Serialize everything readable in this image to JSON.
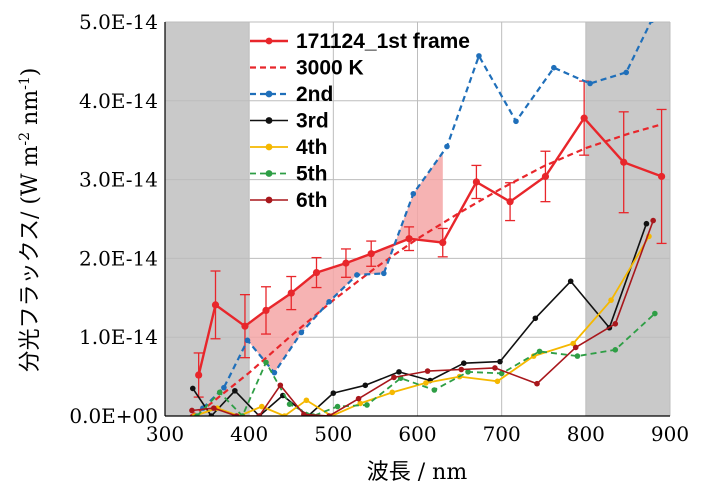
{
  "chart_data": {
    "type": "line",
    "title": "",
    "xlabel": "波長 / nm",
    "ylabel": "分光フラックス/ (W m",
    "ylabel_sup1": "-2",
    "ylabel_mid": " nm",
    "ylabel_sup2": "-1",
    "ylabel_end": ")",
    "xlim": [
      300,
      900
    ],
    "ylim": [
      0,
      5e-14
    ],
    "xticks": [
      300,
      400,
      500,
      600,
      700,
      800,
      900
    ],
    "xtick_labels": [
      "300",
      "400",
      "500",
      "600",
      "700",
      "800",
      "900"
    ],
    "yticks": [
      0,
      1e-14,
      2e-14,
      3e-14,
      4e-14,
      5e-14
    ],
    "ytick_labels": [
      "0.0E+00",
      "1.0E-14",
      "2.0E-14",
      "3.0E-14",
      "4.0E-14",
      "5.0E-14"
    ],
    "grid": true,
    "legend_position": "top-center",
    "shaded_ranges": [
      [
        300,
        400
      ],
      [
        800,
        900
      ]
    ],
    "shaded_color": "#c9c9c9",
    "fill_between": {
      "upper": "171124_1st frame",
      "lower": "2nd",
      "x_range": [
        400,
        630
      ],
      "color": "#f4a6a6"
    },
    "series": [
      {
        "name": "171124_1st frame",
        "color": "#e8262b",
        "style": "solid",
        "marker": true,
        "width": 2.4,
        "x": [
          340,
          360,
          395,
          420,
          450,
          480,
          515,
          545,
          590,
          630,
          670,
          710,
          752,
          798,
          845,
          890
        ],
        "y": [
          5.2e-15,
          1.41e-14,
          1.14e-14,
          1.34e-14,
          1.56e-14,
          1.82e-14,
          1.94e-14,
          2.06e-14,
          2.25e-14,
          2.2e-14,
          2.97e-14,
          2.72e-14,
          3.04e-14,
          3.78e-14,
          3.22e-14,
          3.04e-14
        ],
        "err": [
          2.8e-15,
          4.3e-15,
          4e-15,
          3e-15,
          2.1e-15,
          1.9e-15,
          1.8e-15,
          1.6e-15,
          1.5e-15,
          1.8e-15,
          2.1e-15,
          2.4e-15,
          3.2e-15,
          4.7e-15,
          6.4e-15,
          8.5e-15
        ]
      },
      {
        "name": "3000 K",
        "color": "#e8262b",
        "style": "dashed",
        "marker": false,
        "width": 2.2,
        "x": [
          330,
          350,
          400,
          450,
          500,
          550,
          600,
          650,
          700,
          750,
          800,
          850,
          890
        ],
        "y": [
          0,
          1.2e-15,
          5.5e-15,
          1.02e-14,
          1.47e-14,
          1.88e-14,
          2.25e-14,
          2.58e-14,
          2.89e-14,
          3.17e-14,
          3.4e-14,
          3.58e-14,
          3.7e-14
        ]
      },
      {
        "name": "2nd",
        "color": "#1f6fba",
        "style": "dashed",
        "marker": true,
        "width": 2.2,
        "x": [
          345,
          370,
          398,
          430,
          462,
          495,
          528,
          560,
          595,
          635,
          673,
          717,
          762,
          805,
          848,
          878
        ],
        "y": [
          1e-15,
          3.6e-15,
          9.6e-15,
          5.5e-15,
          1.06e-14,
          1.45e-14,
          1.79e-14,
          1.81e-14,
          2.82e-14,
          3.42e-14,
          4.57e-14,
          3.74e-14,
          4.42e-14,
          4.22e-14,
          4.36e-14,
          5.02e-14
        ]
      },
      {
        "name": "3rd",
        "color": "#111111",
        "style": "solid",
        "marker": true,
        "width": 1.6,
        "x": [
          333,
          355,
          383,
          412,
          440,
          470,
          500,
          538,
          578,
          615,
          655,
          698,
          740,
          782,
          828,
          872
        ],
        "y": [
          3.5e-15,
          0,
          3.2e-15,
          0,
          2.6e-15,
          0,
          2.9e-15,
          3.9e-15,
          5.6e-15,
          4.5e-15,
          6.7e-15,
          6.9e-15,
          1.24e-14,
          1.71e-14,
          1.12e-14,
          2.44e-14
        ]
      },
      {
        "name": "4th",
        "color": "#f5b800",
        "style": "solid",
        "marker": true,
        "width": 1.8,
        "x": [
          335,
          362,
          388,
          415,
          442,
          468,
          498,
          532,
          570,
          610,
          650,
          695,
          738,
          785,
          830,
          875
        ],
        "y": [
          0,
          1e-15,
          0,
          1.2e-15,
          0,
          2e-15,
          0,
          1.6e-15,
          3e-15,
          4.2e-15,
          5e-15,
          4.4e-15,
          7.6e-15,
          9.2e-15,
          1.47e-14,
          2.28e-14
        ]
      },
      {
        "name": "5th",
        "color": "#2e9e45",
        "style": "dashed",
        "marker": true,
        "width": 1.8,
        "x": [
          338,
          365,
          392,
          420,
          448,
          476,
          505,
          540,
          580,
          620,
          660,
          700,
          745,
          790,
          835,
          882
        ],
        "y": [
          0,
          3e-15,
          0,
          6.8e-15,
          1.5e-15,
          0,
          1.2e-15,
          1.4e-15,
          4.8e-15,
          3.3e-15,
          5.6e-15,
          5.4e-15,
          8.2e-15,
          7.6e-15,
          8.4e-15,
          1.3e-14
        ]
      },
      {
        "name": "6th",
        "color": "#a8171c",
        "style": "solid",
        "marker": true,
        "width": 1.6,
        "x": [
          332,
          358,
          385,
          412,
          437,
          465,
          495,
          530,
          572,
          612,
          652,
          692,
          742,
          788,
          835,
          880
        ],
        "y": [
          7e-16,
          1e-15,
          0,
          0,
          3.9e-15,
          2e-16,
          0,
          2.2e-15,
          4.9e-15,
          5.7e-15,
          5.9e-15,
          6.1e-15,
          4.1e-15,
          8.7e-15,
          1.17e-14,
          2.48e-14
        ]
      }
    ]
  }
}
